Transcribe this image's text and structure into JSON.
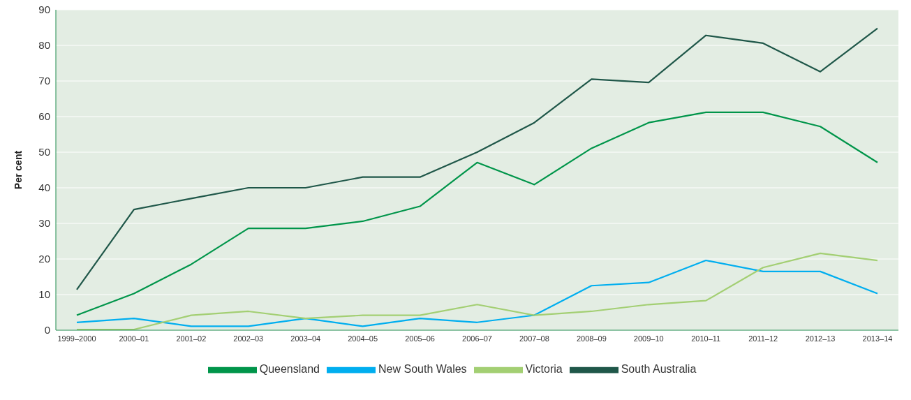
{
  "chart_data": {
    "type": "line",
    "ylabel": "Per cent",
    "categories": [
      "1999–2000",
      "2000–01",
      "2001–02",
      "2002–03",
      "2003–04",
      "2004–05",
      "2005–06",
      "2006–07",
      "2007–08",
      "2008–09",
      "2009–10",
      "2010–11",
      "2011–12",
      "2012–13",
      "2013–14"
    ],
    "series": [
      {
        "name": "Queensland",
        "color": "#00954a",
        "values": [
          4.2,
          10.3,
          18.5,
          28.6,
          28.6,
          30.6,
          34.8,
          47.1,
          40.9,
          51.1,
          58.3,
          61.2,
          61.2,
          57.2,
          47.1
        ]
      },
      {
        "name": "New South Wales",
        "color": "#00aeef",
        "values": [
          2.2,
          3.3,
          1.1,
          1.1,
          3.3,
          1.1,
          3.3,
          2.2,
          4.2,
          12.5,
          13.4,
          19.6,
          16.5,
          16.5,
          10.3
        ]
      },
      {
        "name": "Victoria",
        "color": "#a3cf73",
        "values": [
          0.2,
          0.2,
          4.2,
          5.3,
          3.3,
          4.2,
          4.2,
          7.2,
          4.2,
          5.3,
          7.2,
          8.3,
          17.6,
          21.6,
          19.6
        ]
      },
      {
        "name": "South Australia",
        "color": "#1f5749",
        "values": [
          11.4,
          33.9,
          37,
          40,
          40,
          43,
          43,
          50,
          58.3,
          70.5,
          69.6,
          82.8,
          80.6,
          72.6,
          84.8
        ]
      }
    ],
    "ylim": [
      0,
      90
    ],
    "yticks": [
      0,
      10,
      20,
      30,
      40,
      50,
      60,
      70,
      80,
      90
    ],
    "grid": "y",
    "legend": "bottom",
    "marker": "none",
    "line_style": "solid"
  }
}
